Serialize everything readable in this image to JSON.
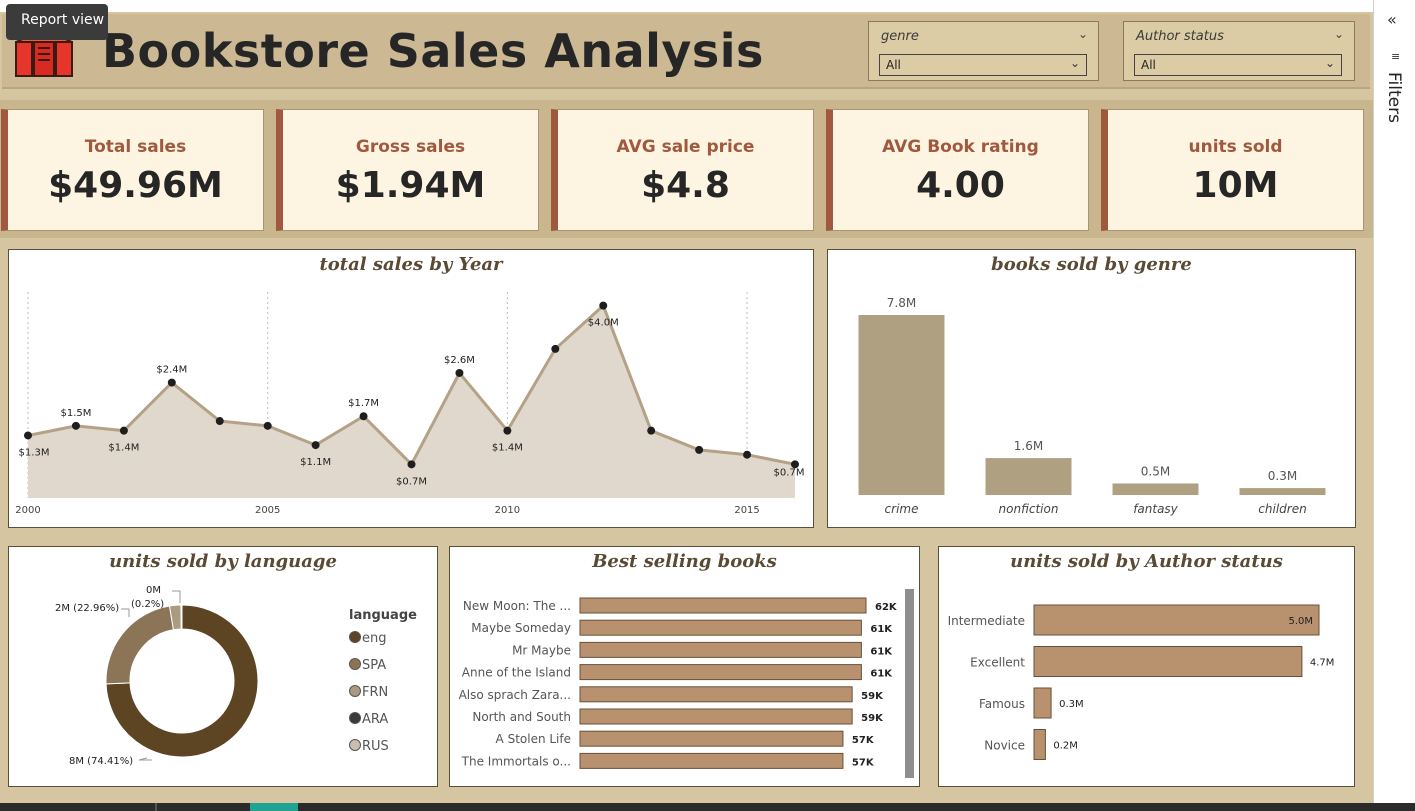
{
  "header": {
    "title": "Bookstore Sales Analysis",
    "logo_icon": "books-icon"
  },
  "tooltip": {
    "text": "Report view"
  },
  "slicers": [
    {
      "label": "genre",
      "value": "All"
    },
    {
      "label": "Author status",
      "value": "All"
    }
  ],
  "kpis": [
    {
      "label": "Total sales",
      "value": "$49.96M"
    },
    {
      "label": "Gross sales",
      "value": "$1.94M"
    },
    {
      "label": "AVG sale price",
      "value": "$4.8"
    },
    {
      "label": "AVG Book rating",
      "value": "4.00"
    },
    {
      "label": "units sold",
      "value": "10M"
    }
  ],
  "filters_pane": {
    "label": "Filters"
  },
  "colors": {
    "accent": "#a0593e",
    "area_line": "#b5a186",
    "area_fill": "#e0d8cc",
    "genre_bar": "#b0a082",
    "hbar": "#b8916e",
    "donut": [
      "#5d4423",
      "#8c7556",
      "#a99a80",
      "#3a3a3a",
      "#c9bfae"
    ]
  },
  "chart_data": [
    {
      "id": "sales_by_year",
      "type": "area",
      "title": "total sales by Year",
      "x": [
        2000,
        2001,
        2002,
        2003,
        2004,
        2005,
        2006,
        2007,
        2008,
        2009,
        2010,
        2011,
        2012,
        2013,
        2014,
        2015,
        2016
      ],
      "y": [
        1.3,
        1.5,
        1.4,
        2.4,
        1.6,
        1.5,
        1.1,
        1.7,
        0.7,
        2.6,
        1.4,
        3.1,
        4.0,
        1.4,
        1.0,
        0.9,
        0.7
      ],
      "labels": [
        "$1.3M",
        "$1.5M",
        "$1.4M",
        "$2.4M",
        "",
        "",
        "$1.1M",
        "$1.7M",
        "$0.7M",
        "$2.6M",
        "$1.4M",
        "",
        "$4.0M",
        "",
        "",
        "",
        "$0.7M"
      ],
      "xticks": [
        2000,
        2005,
        2010,
        2015
      ],
      "ylim": [
        0,
        4.2
      ],
      "grid": "vertical"
    },
    {
      "id": "books_by_genre",
      "type": "bar",
      "title": "books sold by genre",
      "categories": [
        "crime",
        "nonfiction",
        "fantasy",
        "children"
      ],
      "values": [
        7.8,
        1.6,
        0.5,
        0.3
      ],
      "labels": [
        "7.8M",
        "1.6M",
        "0.5M",
        "0.3M"
      ],
      "ylim": [
        0,
        7.8
      ]
    },
    {
      "id": "units_by_language",
      "type": "pie",
      "title": "units sold by language",
      "legend_title": "language",
      "legend": [
        "eng",
        "SPA",
        "FRN",
        "ARA",
        "RUS"
      ],
      "values": [
        74.41,
        22.96,
        2.4,
        0.03,
        0.2
      ],
      "callouts": [
        "8M (74.41%)",
        "2M (22.96%)",
        "0M",
        "(0.2%)"
      ]
    },
    {
      "id": "best_selling_books",
      "type": "bar",
      "orientation": "horizontal",
      "title": "Best selling books",
      "categories": [
        "New Moon: The ...",
        "Maybe Someday",
        "Mr Maybe",
        "Anne of the Island",
        "Also sprach Zara...",
        "North and South",
        "A Stolen Life",
        "The Immortals o..."
      ],
      "values": [
        62,
        61,
        61,
        61,
        59,
        59,
        57,
        57
      ],
      "labels": [
        "62K",
        "61K",
        "61K",
        "61K",
        "59K",
        "59K",
        "57K",
        "57K"
      ]
    },
    {
      "id": "units_by_author_status",
      "type": "bar",
      "orientation": "horizontal",
      "title": "units sold by Author status",
      "categories": [
        "Intermediate",
        "Excellent",
        "Famous",
        "Novice"
      ],
      "values": [
        5.0,
        4.7,
        0.3,
        0.2
      ],
      "labels": [
        "5.0M",
        "4.7M",
        "0.3M",
        "0.2M"
      ]
    }
  ]
}
